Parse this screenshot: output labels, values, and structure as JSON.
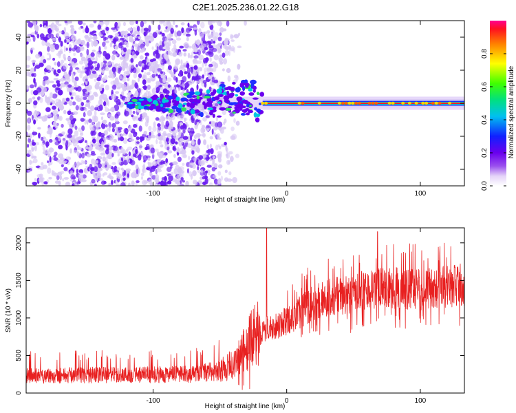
{
  "title": "C2E1.2025.236.01.22.G18",
  "chart_data": [
    {
      "type": "heatmap",
      "name": "spectrogram",
      "xlabel": "Height of straight line (km)",
      "ylabel": "Frequency (Hz)",
      "xlim": [
        -195,
        133
      ],
      "ylim": [
        -50,
        50
      ],
      "xticks": [
        -100,
        0,
        100
      ],
      "yticks": [
        -40,
        -20,
        0,
        20,
        40
      ],
      "colorbar": {
        "label": "Normalized spectral amplitude",
        "range": [
          0.0,
          1.0
        ],
        "ticks": [
          0.0,
          0.2,
          0.4,
          0.6,
          0.8
        ]
      },
      "colors": {
        "low": "#d8c8f4",
        "mid": "#6a1cf0",
        "high": "#ff2020"
      },
      "features": {
        "noise_extent_km": [
          -195,
          -40
        ],
        "signal_start_km": -120,
        "carrier_frequency_hz": 0,
        "carrier_peak_start_km": -18
      }
    },
    {
      "type": "line",
      "name": "snr",
      "xlabel": "Height of straight line (km)",
      "ylabel": "SNR (10 * v/v)",
      "xlim": [
        -195,
        133
      ],
      "ylim": [
        0,
        2200
      ],
      "xticks": [
        -100,
        0,
        100
      ],
      "yticks": [
        0,
        500,
        1000,
        1500,
        2000
      ],
      "line_color": "#e82020",
      "series": [
        {
          "name": "SNR",
          "x": [
            -195,
            -150,
            -100,
            -70,
            -50,
            -40,
            -35,
            -30,
            -25,
            -20,
            -15,
            -10,
            0,
            10,
            20,
            30,
            40,
            50,
            60,
            70,
            80,
            90,
            100,
            110,
            120,
            133
          ],
          "y": [
            230,
            240,
            245,
            250,
            300,
            380,
            470,
            620,
            750,
            800,
            850,
            880,
            960,
            1080,
            1200,
            1270,
            1300,
            1330,
            1380,
            1410,
            1400,
            1380,
            1380,
            1390,
            1420,
            1440
          ]
        }
      ],
      "spikes": [
        {
          "x": -15,
          "y": 2200
        },
        {
          "x": 68,
          "y": 2150
        },
        {
          "x": 80,
          "y": 1980
        },
        {
          "x": 50,
          "y": 1830
        }
      ]
    }
  ]
}
